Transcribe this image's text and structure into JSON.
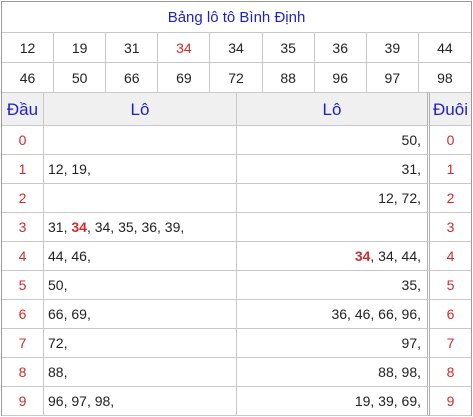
{
  "title": "Bảng lô tô Bình Định",
  "numbers": [
    {
      "v": "12",
      "hl": false
    },
    {
      "v": "19",
      "hl": false
    },
    {
      "v": "31",
      "hl": false
    },
    {
      "v": "34",
      "hl": true
    },
    {
      "v": "34",
      "hl": false
    },
    {
      "v": "35",
      "hl": false
    },
    {
      "v": "36",
      "hl": false
    },
    {
      "v": "39",
      "hl": false
    },
    {
      "v": "44",
      "hl": false
    },
    {
      "v": "46",
      "hl": false
    },
    {
      "v": "50",
      "hl": false
    },
    {
      "v": "66",
      "hl": false
    },
    {
      "v": "69",
      "hl": false
    },
    {
      "v": "72",
      "hl": false
    },
    {
      "v": "88",
      "hl": false
    },
    {
      "v": "96",
      "hl": false
    },
    {
      "v": "97",
      "hl": false
    },
    {
      "v": "98",
      "hl": false
    }
  ],
  "headers": {
    "dau": "Đầu",
    "lo_left": "Lô",
    "lo_right": "Lô",
    "duoi": "Đuôi"
  },
  "rows": [
    {
      "dau": "0",
      "left": [],
      "right": [
        {
          "t": "50",
          "hot": false
        }
      ],
      "duoi": "0"
    },
    {
      "dau": "1",
      "left": [
        {
          "t": "12",
          "hot": false
        },
        {
          "t": "19",
          "hot": false
        }
      ],
      "right": [
        {
          "t": "31",
          "hot": false
        }
      ],
      "duoi": "1"
    },
    {
      "dau": "2",
      "left": [],
      "right": [
        {
          "t": "12",
          "hot": false
        },
        {
          "t": "72",
          "hot": false
        }
      ],
      "duoi": "2"
    },
    {
      "dau": "3",
      "left": [
        {
          "t": "31",
          "hot": false
        },
        {
          "t": "34",
          "hot": true
        },
        {
          "t": "34",
          "hot": false
        },
        {
          "t": "35",
          "hot": false
        },
        {
          "t": "36",
          "hot": false
        },
        {
          "t": "39",
          "hot": false
        }
      ],
      "right": [],
      "duoi": "3"
    },
    {
      "dau": "4",
      "left": [
        {
          "t": "44",
          "hot": false
        },
        {
          "t": "46",
          "hot": false
        }
      ],
      "right": [
        {
          "t": "34",
          "hot": true
        },
        {
          "t": "34",
          "hot": false
        },
        {
          "t": "44",
          "hot": false
        }
      ],
      "duoi": "4"
    },
    {
      "dau": "5",
      "left": [
        {
          "t": "50",
          "hot": false
        }
      ],
      "right": [
        {
          "t": "35",
          "hot": false
        }
      ],
      "duoi": "5"
    },
    {
      "dau": "6",
      "left": [
        {
          "t": "66",
          "hot": false
        },
        {
          "t": "69",
          "hot": false
        }
      ],
      "right": [
        {
          "t": "36",
          "hot": false
        },
        {
          "t": "46",
          "hot": false
        },
        {
          "t": "66",
          "hot": false
        },
        {
          "t": "96",
          "hot": false
        }
      ],
      "duoi": "6"
    },
    {
      "dau": "7",
      "left": [
        {
          "t": "72",
          "hot": false
        }
      ],
      "right": [
        {
          "t": "97",
          "hot": false
        }
      ],
      "duoi": "7"
    },
    {
      "dau": "8",
      "left": [
        {
          "t": "88",
          "hot": false
        }
      ],
      "right": [
        {
          "t": "88",
          "hot": false
        },
        {
          "t": "98",
          "hot": false
        }
      ],
      "duoi": "8"
    },
    {
      "dau": "9",
      "left": [
        {
          "t": "96",
          "hot": false
        },
        {
          "t": "97",
          "hot": false
        },
        {
          "t": "98",
          "hot": false
        }
      ],
      "right": [
        {
          "t": "19",
          "hot": false
        },
        {
          "t": "39",
          "hot": false
        },
        {
          "t": "69",
          "hot": false
        }
      ],
      "duoi": "9"
    }
  ]
}
